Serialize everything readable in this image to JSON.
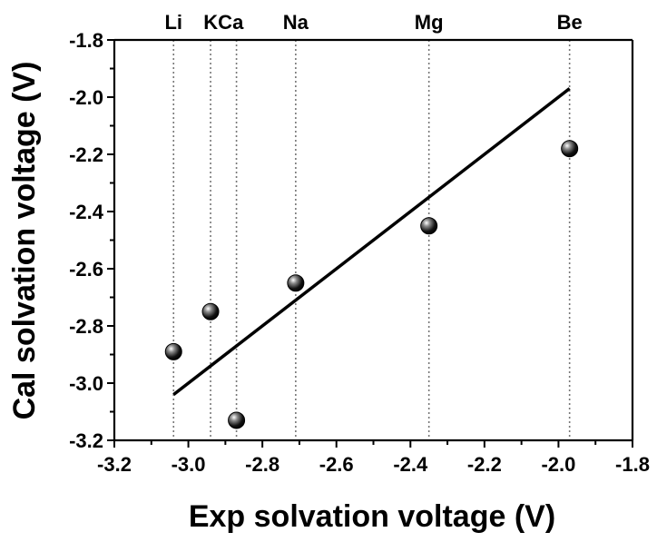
{
  "chart_data": {
    "type": "scatter",
    "title": "",
    "xlabel": "Exp solvation voltage (V)",
    "ylabel": "Cal solvation voltage (V)",
    "xlim": [
      -3.2,
      -1.8
    ],
    "ylim": [
      -3.2,
      -1.8
    ],
    "xticks": [
      -3.2,
      -3.0,
      -2.8,
      -2.6,
      -2.4,
      -2.2,
      -2.0,
      -1.8
    ],
    "yticks": [
      -3.2,
      -3.0,
      -2.8,
      -2.6,
      -2.4,
      -2.2,
      -2.0,
      -1.8
    ],
    "xtick_labels": [
      "-3.2",
      "-3.0",
      "-2.8",
      "-2.6",
      "-2.4",
      "-2.2",
      "-2.0",
      "-1.8"
    ],
    "ytick_labels": [
      "-3.2",
      "-3.0",
      "-2.8",
      "-2.6",
      "-2.4",
      "-2.2",
      "-2.0",
      "-1.8"
    ],
    "grid": false,
    "points": [
      {
        "label": "Li",
        "x": -3.04,
        "y": -2.89
      },
      {
        "label": "K",
        "x": -2.94,
        "y": -2.75
      },
      {
        "label": "Ca",
        "x": -2.87,
        "y": -3.13
      },
      {
        "label": "Na",
        "x": -2.71,
        "y": -2.65
      },
      {
        "label": "Mg",
        "x": -2.35,
        "y": -2.45
      },
      {
        "label": "Be",
        "x": -1.97,
        "y": -2.18
      }
    ],
    "element_labels": [
      {
        "text": "Li",
        "x": -3.04
      },
      {
        "text": "KCa",
        "x": -2.905
      },
      {
        "text": "Na",
        "x": -2.71
      },
      {
        "text": "Mg",
        "x": -2.35
      },
      {
        "text": "Be",
        "x": -1.97
      }
    ],
    "reference_lines_x": [
      -3.04,
      -2.94,
      -2.87,
      -2.71,
      -2.35,
      -1.97
    ],
    "fit_line": {
      "x": [
        -3.04,
        -1.97
      ],
      "y": [
        -3.04,
        -1.97
      ]
    },
    "colors": {
      "marker": "#000000",
      "fit": "#000000",
      "ref_line": "#777777"
    }
  }
}
